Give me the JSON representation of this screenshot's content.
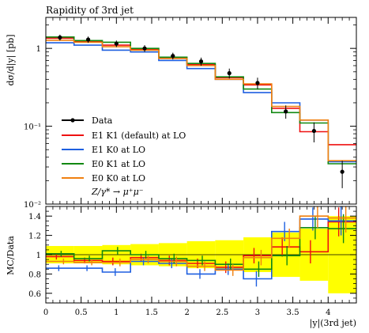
{
  "chart_data": [
    {
      "type": "line",
      "title": "Rapidity of 3rd jet",
      "ylabel": "dσ/d|y| [pb]",
      "xlim": [
        0,
        4.4
      ],
      "ylim": [
        0.01,
        2.5
      ],
      "yscale": "log",
      "ytick_values": [
        0.01,
        0.1,
        1
      ],
      "ytick_labels": [
        "10⁻²",
        "10⁻¹",
        "1"
      ],
      "legend_position": "lower-left",
      "bin_edges": [
        0,
        0.4,
        0.8,
        1.2,
        1.6,
        2.0,
        2.4,
        2.8,
        3.2,
        3.6,
        4.0,
        4.4
      ],
      "data": {
        "name": "Data",
        "color": "#000000",
        "x": [
          0.2,
          0.6,
          1.0,
          1.4,
          1.8,
          2.2,
          2.6,
          3.0,
          3.4,
          3.8,
          4.2
        ],
        "y": [
          1.38,
          1.3,
          1.15,
          1.0,
          0.8,
          0.68,
          0.48,
          0.36,
          0.155,
          0.087,
          0.026
        ],
        "yerr": [
          0.12,
          0.12,
          0.11,
          0.1,
          0.08,
          0.08,
          0.07,
          0.06,
          0.03,
          0.025,
          0.01
        ]
      },
      "series": [
        {
          "name": "E1 K1 (default) at LO",
          "color": "#ee1111",
          "values": [
            1.35,
            1.22,
            1.1,
            0.97,
            0.76,
            0.62,
            0.42,
            0.34,
            0.17,
            0.085,
            0.058
          ]
        },
        {
          "name": "E1 K0 at LO",
          "color": "#1e5fe0",
          "values": [
            1.18,
            1.1,
            0.95,
            0.9,
            0.7,
            0.55,
            0.4,
            0.27,
            0.2,
            0.12,
            0.035
          ]
        },
        {
          "name": "E0 K1 at LO",
          "color": "#118811",
          "values": [
            1.4,
            1.26,
            1.2,
            1.0,
            0.77,
            0.64,
            0.43,
            0.3,
            0.15,
            0.11,
            0.033
          ]
        },
        {
          "name": "E0 K0 at LO",
          "color": "#f08010",
          "values": [
            1.27,
            1.2,
            1.05,
            0.95,
            0.74,
            0.6,
            0.4,
            0.35,
            0.18,
            0.12,
            0.036
          ]
        }
      ],
      "annotation": "Z/γ* → μ⁺μ⁻"
    },
    {
      "type": "line",
      "ylabel": "MC/Data",
      "xlabel": "|y|(3rd jet)",
      "xlim": [
        0,
        4.4
      ],
      "ylim": [
        0.5,
        1.5
      ],
      "xtick_values": [
        0,
        0.5,
        1,
        1.5,
        2,
        2.5,
        3,
        3.5,
        4
      ],
      "xtick_labels": [
        "0",
        "0.5",
        "1",
        "1.5",
        "2",
        "2.5",
        "3",
        "3.5",
        "4"
      ],
      "ytick_values": [
        0.6,
        0.8,
        1,
        1.2,
        1.4
      ],
      "ytick_labels": [
        "0.6",
        "0.8",
        "1",
        "1.2",
        "1.4"
      ],
      "band_color": "#ffff00",
      "band_halfwidth": [
        0.09,
        0.09,
        0.1,
        0.11,
        0.12,
        0.14,
        0.15,
        0.18,
        0.23,
        0.27,
        0.4
      ],
      "series": [
        {
          "name": "E1 K1 (default) at LO",
          "color": "#ee1111",
          "values": [
            0.98,
            0.94,
            0.93,
            0.97,
            0.94,
            0.91,
            0.87,
            0.99,
            1.08,
            1.03,
            1.34
          ],
          "errors": [
            0.03,
            0.03,
            0.04,
            0.04,
            0.05,
            0.05,
            0.06,
            0.08,
            0.1,
            0.12,
            0.15
          ]
        },
        {
          "name": "E1 K0 at LO",
          "color": "#1e5fe0",
          "values": [
            0.86,
            0.86,
            0.82,
            0.93,
            0.91,
            0.8,
            0.85,
            0.75,
            1.24,
            1.37,
            1.35
          ],
          "errors": [
            0.03,
            0.03,
            0.04,
            0.04,
            0.05,
            0.05,
            0.06,
            0.08,
            0.1,
            0.12,
            0.15
          ]
        },
        {
          "name": "E0 K1 at LO",
          "color": "#118811",
          "values": [
            1.01,
            0.96,
            1.04,
            1.0,
            0.96,
            0.94,
            0.9,
            0.85,
            0.99,
            1.28,
            1.27
          ],
          "errors": [
            0.03,
            0.03,
            0.04,
            0.04,
            0.05,
            0.05,
            0.06,
            0.08,
            0.1,
            0.12,
            0.15
          ]
        },
        {
          "name": "E0 K0 at LO",
          "color": "#f08010",
          "values": [
            0.93,
            0.92,
            0.92,
            0.95,
            0.93,
            0.88,
            0.84,
            0.97,
            1.17,
            1.4,
            1.38
          ],
          "errors": [
            0.03,
            0.03,
            0.04,
            0.04,
            0.05,
            0.05,
            0.06,
            0.08,
            0.1,
            0.12,
            0.15
          ]
        }
      ]
    }
  ]
}
